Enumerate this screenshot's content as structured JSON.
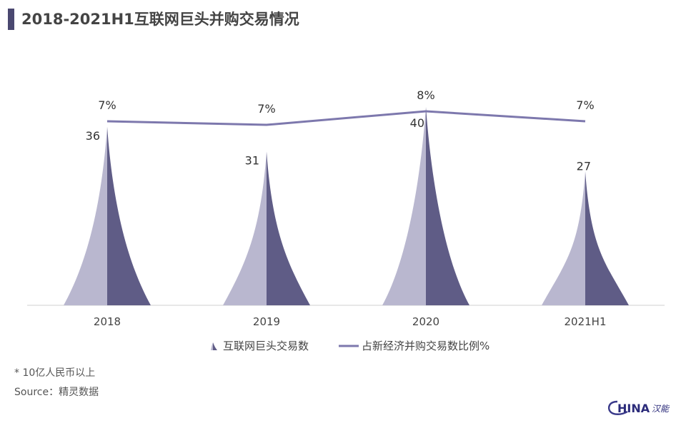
{
  "title": "2018-2021H1互联网巨头并购交易情况",
  "chart_data": {
    "type": "bar+line",
    "title": "2018-2021H1互联网巨头并购交易情况",
    "categories": [
      "2018",
      "2019",
      "2020",
      "2021H1"
    ],
    "series": [
      {
        "name": "互联网巨头交易数",
        "type": "bar",
        "values": [
          36,
          31,
          40,
          27
        ],
        "color": "#5f5c86",
        "color_light": "#b9b7cf"
      },
      {
        "name": "占新经济并购交易数比例%",
        "type": "line",
        "values": [
          7,
          7,
          8,
          7
        ],
        "labels": [
          "7%",
          "7%",
          "8%",
          "7%"
        ],
        "color": "#7d78ad"
      }
    ],
    "legend": "bottom-center",
    "grid": false
  },
  "notes": {
    "unit": "* 10亿人民币以上",
    "source": "Source：精灵数据"
  },
  "logo": {
    "text": "HINA",
    "mark": "C"
  }
}
